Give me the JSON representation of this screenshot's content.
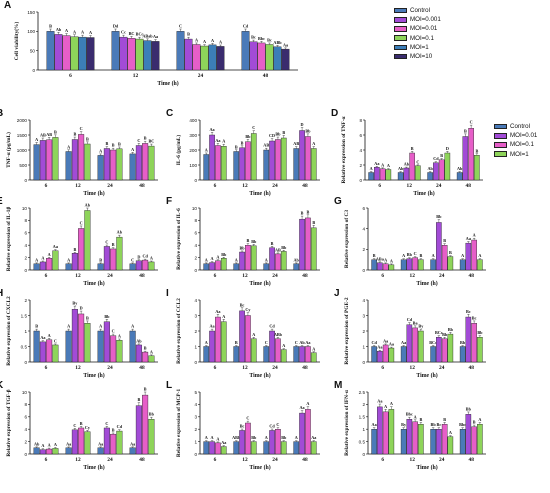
{
  "figure": {
    "legend_top": [
      {
        "name": "Control",
        "color": "#4a7ab8"
      },
      {
        "name": "MOI=0.001",
        "color": "#a24bd6"
      },
      {
        "name": "MOI=0.01",
        "color": "#e65ec8"
      },
      {
        "name": "MOI=0.1",
        "color": "#8ed45a"
      },
      {
        "name": "MOI=1",
        "color": "#3c7eb8"
      },
      {
        "name": "MOI=10",
        "color": "#3a2c6e"
      }
    ],
    "legend_mid": [
      {
        "name": "Control",
        "color": "#4a7ab8"
      },
      {
        "name": "MOI=0.01",
        "color": "#a24bd6"
      },
      {
        "name": "MOI=0.1",
        "color": "#e65ec8"
      },
      {
        "name": "MOI=1",
        "color": "#8ed45a"
      }
    ]
  },
  "chart_data": [
    {
      "panel": "A",
      "type": "bar",
      "ylabel": "Cell viability(%)",
      "xlabel": "Time (h)",
      "categories": [
        "6",
        "12",
        "24",
        "48"
      ],
      "ylim": [
        0,
        150
      ],
      "yticks": [
        0,
        50,
        100,
        150
      ],
      "colors": [
        "#4a7ab8",
        "#a24bd6",
        "#e65ec8",
        "#8ed45a",
        "#3c7eb8",
        "#3a2c6e"
      ],
      "series": [
        {
          "name": "Control",
          "values": [
            100,
            100,
            100,
            100
          ]
        },
        {
          "name": "MOI=0.001",
          "values": [
            92,
            85,
            80,
            73
          ]
        },
        {
          "name": "MOI=0.01",
          "values": [
            89,
            82,
            66,
            70
          ]
        },
        {
          "name": "MOI=0.1",
          "values": [
            86,
            80,
            62,
            66
          ]
        },
        {
          "name": "MOI=1",
          "values": [
            85,
            76,
            65,
            60
          ]
        },
        {
          "name": "MOI=10",
          "values": [
            84,
            74,
            61,
            54
          ]
        }
      ],
      "labels": [
        [
          "B",
          "Ab",
          "A",
          "A",
          "A",
          "A"
        ],
        [
          "Dd",
          "Cc",
          "BC",
          "BCc",
          "ABab",
          "Aa"
        ],
        [
          "C",
          "B",
          "A",
          "A",
          "A",
          "A"
        ],
        [
          "Cd",
          "Bc",
          "Bbc",
          "Bc",
          "ABb",
          "Aa"
        ]
      ]
    },
    {
      "panel": "B",
      "type": "bar",
      "ylabel": "TNF-α (pg/mL)",
      "xlabel": "Time (h)",
      "categories": [
        "6",
        "12",
        "24",
        "48"
      ],
      "ylim": [
        0,
        2000
      ],
      "yticks": [
        0,
        500,
        1000,
        1500,
        2000
      ],
      "colors": [
        "#4a7ab8",
        "#a24bd6",
        "#e65ec8",
        "#8ed45a"
      ],
      "series": [
        {
          "name": "Control",
          "values": [
            1180,
            950,
            820,
            870
          ]
        },
        {
          "name": "MOI=0.01",
          "values": [
            1320,
            1350,
            1050,
            1150
          ]
        },
        {
          "name": "MOI=0.1",
          "values": [
            1340,
            1520,
            1000,
            1220
          ]
        },
        {
          "name": "MOI=1",
          "values": [
            1420,
            1200,
            1040,
            1130
          ]
        }
      ],
      "labels": [
        [
          "A",
          "AB",
          "AB",
          "B"
        ],
        [
          "A",
          "B",
          "C",
          "B"
        ],
        [
          "A",
          "B",
          "B",
          "B"
        ],
        [
          "A",
          "C",
          "B",
          "BC"
        ]
      ]
    },
    {
      "panel": "C",
      "type": "bar",
      "ylabel": "IL-6 (pg/mL)",
      "xlabel": "Time (h)",
      "categories": [
        "6",
        "12",
        "24",
        "48"
      ],
      "ylim": [
        0,
        400
      ],
      "yticks": [
        0,
        100,
        200,
        300,
        400
      ],
      "colors": [
        "#4a7ab8",
        "#a24bd6",
        "#e65ec8",
        "#8ed45a"
      ],
      "series": [
        {
          "name": "Control",
          "values": [
            170,
            190,
            200,
            210
          ]
        },
        {
          "name": "MOI=0.01",
          "values": [
            300,
            215,
            260,
            330
          ]
        },
        {
          "name": "MOI=0.1",
          "values": [
            230,
            255,
            270,
            290
          ]
        },
        {
          "name": "MOI=1",
          "values": [
            225,
            310,
            280,
            210
          ]
        }
      ],
      "labels": [
        [
          "A",
          "Aa",
          "Aa",
          "A"
        ],
        [
          "B",
          "B",
          "Bb",
          "C"
        ],
        [
          "AB",
          "CD",
          "Bb",
          "B"
        ],
        [
          "AB",
          "D",
          "Bb",
          "A"
        ]
      ]
    },
    {
      "panel": "D",
      "type": "bar",
      "ylabel": "Relative expression of TNF-α",
      "xlabel": "Time (h)",
      "categories": [
        "6",
        "12",
        "24",
        "48"
      ],
      "ylim": [
        0,
        8
      ],
      "yticks": [
        0,
        2,
        4,
        6,
        8
      ],
      "colors": [
        "#4a7ab8",
        "#a24bd6",
        "#e65ec8",
        "#8ed45a"
      ],
      "series": [
        {
          "name": "Control",
          "values": [
            1,
            1,
            1,
            1
          ]
        },
        {
          "name": "MOI=0.01",
          "values": [
            1.7,
            1.6,
            2.3,
            5.8
          ]
        },
        {
          "name": "MOI=0.1",
          "values": [
            1.5,
            3.6,
            2.7,
            6.9
          ]
        },
        {
          "name": "MOI=1",
          "values": [
            1.4,
            1.9,
            3.6,
            3.3
          ]
        }
      ],
      "labels": [
        [
          "A",
          "Aa",
          "A",
          "A"
        ],
        [
          "Ab",
          "Ab",
          "B",
          "C"
        ],
        [
          "Ab",
          "Cd",
          "B",
          "D"
        ],
        [
          "Ab",
          "B",
          "C",
          "B"
        ]
      ]
    },
    {
      "panel": "E",
      "type": "bar",
      "ylabel": "Relative expression of IL-1β",
      "xlabel": "Time (h)",
      "categories": [
        "6",
        "12",
        "24",
        "48"
      ],
      "ylim": [
        0,
        10
      ],
      "yticks": [
        0,
        2,
        4,
        6,
        8,
        10
      ],
      "colors": [
        "#4a7ab8",
        "#a24bd6",
        "#e65ec8",
        "#8ed45a"
      ],
      "series": [
        {
          "name": "Control",
          "values": [
            1,
            1,
            1,
            1
          ]
        },
        {
          "name": "MOI=0.01",
          "values": [
            1.3,
            2.7,
            3.8,
            1.5
          ]
        },
        {
          "name": "MOI=0.1",
          "values": [
            1.9,
            6.7,
            3.4,
            1.6
          ]
        },
        {
          "name": "MOI=1",
          "values": [
            3.1,
            9.6,
            5.3,
            1.3
          ]
        }
      ],
      "labels": [
        [
          "A",
          "A",
          "A",
          "Aa"
        ],
        [
          "A",
          "B",
          "C",
          "Ab"
        ],
        [
          "B",
          "C",
          "B",
          "Ab"
        ],
        [
          "C",
          "D",
          "Cd",
          "A"
        ]
      ]
    },
    {
      "panel": "F",
      "type": "bar",
      "ylabel": "Relative expression of IL-6",
      "xlabel": "Time (h)",
      "categories": [
        "6",
        "12",
        "24",
        "48"
      ],
      "ylim": [
        0,
        10
      ],
      "yticks": [
        0,
        2,
        4,
        6,
        8,
        10
      ],
      "colors": [
        "#4a7ab8",
        "#a24bd6",
        "#e65ec8",
        "#8ed45a"
      ],
      "series": [
        {
          "name": "Control",
          "values": [
            1,
            1,
            1,
            1
          ]
        },
        {
          "name": "MOI=0.01",
          "values": [
            1.2,
            2.9,
            3.6,
            8.2
          ]
        },
        {
          "name": "MOI=0.1",
          "values": [
            1.5,
            4.0,
            2.6,
            8.4
          ]
        },
        {
          "name": "MOI=1",
          "values": [
            1.9,
            3.9,
            3.0,
            6.8
          ]
        }
      ],
      "labels": [
        [
          "A",
          "A",
          "A",
          "Bb"
        ],
        [
          "A",
          "Bb",
          "B",
          "Bb"
        ],
        [
          "A",
          "B",
          "AB",
          "Bb"
        ],
        [
          "Ab",
          "B",
          "B",
          "B"
        ]
      ]
    },
    {
      "panel": "G",
      "type": "bar",
      "ylabel": "Relative expression of C3",
      "xlabel": "Time (h)",
      "categories": [
        "6",
        "12",
        "24",
        "48"
      ],
      "ylim": [
        0,
        6
      ],
      "yticks": [
        0,
        2,
        4,
        6
      ],
      "colors": [
        "#4a7ab8",
        "#a24bd6",
        "#e65ec8",
        "#8ed45a"
      ],
      "series": [
        {
          "name": "Control",
          "values": [
            1,
            1,
            1,
            1
          ]
        },
        {
          "name": "MOI=0.01",
          "values": [
            0.7,
            1.1,
            4.6,
            2.6
          ]
        },
        {
          "name": "MOI=0.1",
          "values": [
            0.6,
            1.2,
            2.4,
            2.9
          ]
        },
        {
          "name": "MOI=1",
          "values": [
            0.5,
            1.0,
            1.3,
            1.0
          ]
        }
      ],
      "labels": [
        [
          "B",
          "ABa",
          "A",
          "A"
        ],
        [
          "A",
          "Bb",
          "C",
          "B"
        ],
        [
          "A",
          "Bb",
          "B",
          "B"
        ],
        [
          "A",
          "Aa",
          "A",
          "A"
        ]
      ]
    },
    {
      "panel": "H",
      "type": "bar",
      "ylabel": "Relative expression of CXCL2",
      "xlabel": "Time (h)",
      "categories": [
        "6",
        "12",
        "24",
        "48"
      ],
      "ylim": [
        0,
        2.0
      ],
      "yticks": [
        0,
        0.5,
        1.0,
        1.5,
        2.0
      ],
      "colors": [
        "#4a7ab8",
        "#a24bd6",
        "#e65ec8",
        "#8ed45a"
      ],
      "series": [
        {
          "name": "Control",
          "values": [
            1,
            1,
            1,
            1
          ]
        },
        {
          "name": "MOI=0.01",
          "values": [
            0.65,
            1.7,
            1.3,
            0.55
          ]
        },
        {
          "name": "MOI=0.1",
          "values": [
            0.72,
            1.55,
            0.85,
            0.32
          ]
        },
        {
          "name": "MOI=1",
          "values": [
            0.55,
            1.25,
            0.7,
            0.2
          ]
        }
      ],
      "labels": [
        [
          "B",
          "Aa",
          "A",
          "C"
        ],
        [
          "A",
          "By",
          "D",
          "B"
        ],
        [
          "A",
          "Bb",
          "C",
          "A"
        ],
        [
          "A",
          "Ab",
          "B",
          "A"
        ]
      ]
    },
    {
      "panel": "I",
      "type": "bar",
      "ylabel": "Relative expression of CCL2",
      "xlabel": "Time (h)",
      "categories": [
        "6",
        "12",
        "24",
        "48"
      ],
      "ylim": [
        0,
        4
      ],
      "yticks": [
        0,
        1,
        2,
        3,
        4
      ],
      "colors": [
        "#4a7ab8",
        "#a24bd6",
        "#e65ec8",
        "#8ed45a"
      ],
      "series": [
        {
          "name": "Control",
          "values": [
            1,
            1,
            1,
            1
          ]
        },
        {
          "name": "MOI=0.01",
          "values": [
            2.0,
            3.3,
            2.0,
            1.0
          ]
        },
        {
          "name": "MOI=0.1",
          "values": [
            2.9,
            3.0,
            1.5,
            1.0
          ]
        },
        {
          "name": "MOI=1",
          "values": [
            2.6,
            1.5,
            0.8,
            0.6
          ]
        }
      ],
      "labels": [
        [
          "A",
          "Aa",
          "Aa",
          "A"
        ],
        [
          "B",
          "Bc",
          "Cy",
          "A"
        ],
        [
          "C",
          "Cd",
          "ABb",
          "A"
        ],
        [
          "C",
          "Ab",
          "Aa",
          "A"
        ]
      ]
    },
    {
      "panel": "J",
      "type": "bar",
      "ylabel": "Relative expression of PGE-2",
      "xlabel": "Time (h)",
      "categories": [
        "6",
        "12",
        "24",
        "48"
      ],
      "ylim": [
        0,
        4
      ],
      "yticks": [
        0,
        1,
        2,
        3,
        4
      ],
      "colors": [
        "#4a7ab8",
        "#a24bd6",
        "#e65ec8",
        "#8ed45a"
      ],
      "series": [
        {
          "name": "Control",
          "values": [
            1,
            1,
            1,
            1
          ]
        },
        {
          "name": "MOI=0.01",
          "values": [
            0.7,
            2.4,
            1.6,
            2.9
          ]
        },
        {
          "name": "MOI=0.1",
          "values": [
            1.1,
            2.2,
            1.5,
            2.5
          ]
        },
        {
          "name": "MOI=1",
          "values": [
            0.9,
            2.0,
            1.8,
            1.6
          ]
        }
      ],
      "labels": [
        [
          "Cd",
          "Aa",
          "Aa",
          "Aa"
        ],
        [
          "Aa",
          "Cd",
          "Ba",
          "By"
        ],
        [
          "BCc",
          "BCc",
          "Bb",
          "Bb"
        ],
        [
          "Bb",
          "Bc",
          "Bc",
          "Bb"
        ]
      ]
    },
    {
      "panel": "K",
      "type": "bar",
      "ylabel": "Relative expression of TGF-β",
      "xlabel": "Time (h)",
      "categories": [
        "6",
        "12",
        "24",
        "48"
      ],
      "ylim": [
        0,
        10
      ],
      "yticks": [
        0,
        2,
        4,
        6,
        8,
        10
      ],
      "colors": [
        "#4a7ab8",
        "#a24bd6",
        "#e65ec8",
        "#8ed45a"
      ],
      "series": [
        {
          "name": "Control",
          "values": [
            1,
            1,
            1,
            1
          ]
        },
        {
          "name": "MOI=0.01",
          "values": [
            0.7,
            3.9,
            4.2,
            7.8
          ]
        },
        {
          "name": "MOI=0.1",
          "values": [
            0.8,
            4.2,
            3.2,
            9.5
          ]
        },
        {
          "name": "MOI=1",
          "values": [
            0.9,
            3.6,
            3.7,
            5.6
          ]
        }
      ],
      "labels": [
        [
          "Ab",
          "A",
          "A",
          "A"
        ],
        [
          "Aa",
          "C",
          "B",
          "Cy"
        ],
        [
          "Aa",
          "C",
          "B",
          "Cd"
        ],
        [
          "Aa",
          "B",
          "B",
          "Bb"
        ]
      ]
    },
    {
      "panel": "L",
      "type": "bar",
      "ylabel": "Relative expression of MCP-1",
      "xlabel": "Time (h)",
      "categories": [
        "6",
        "12",
        "24",
        "48"
      ],
      "ylim": [
        0,
        5
      ],
      "yticks": [
        0,
        1,
        2,
        3,
        4,
        5
      ],
      "colors": [
        "#4a7ab8",
        "#a24bd6",
        "#e65ec8",
        "#8ed45a"
      ],
      "series": [
        {
          "name": "Control",
          "values": [
            1,
            1,
            1,
            1
          ]
        },
        {
          "name": "MOI=0.01",
          "values": [
            1.0,
            1.9,
            1.9,
            3.3
          ]
        },
        {
          "name": "MOI=0.1",
          "values": [
            0.9,
            2.5,
            2.0,
            3.6
          ]
        },
        {
          "name": "MOI=1",
          "values": [
            0.6,
            1.0,
            1.0,
            1.0
          ]
        }
      ],
      "labels": [
        [
          "A",
          "A",
          "A",
          "Aa"
        ],
        [
          "ABb",
          "Bc",
          "C",
          "Bb"
        ],
        [
          "A",
          "Cd",
          "C",
          "Bb"
        ],
        [
          "A",
          "Aa",
          "A",
          "Aa"
        ]
      ]
    },
    {
      "panel": "M",
      "type": "bar",
      "ylabel": "Relative expression of IFN-α",
      "xlabel": "Time (h)",
      "categories": [
        "6",
        "12",
        "24",
        "48"
      ],
      "ylim": [
        0,
        2.5
      ],
      "yticks": [
        0,
        0.5,
        1.0,
        1.5,
        2.0,
        2.5
      ],
      "colors": [
        "#4a7ab8",
        "#a24bd6",
        "#e65ec8",
        "#8ed45a"
      ],
      "series": [
        {
          "name": "Control",
          "values": [
            1,
            1,
            1,
            1
          ]
        },
        {
          "name": "MOI=0.01",
          "values": [
            1.9,
            1.4,
            1.0,
            1.6
          ]
        },
        {
          "name": "MOI=0.1",
          "values": [
            1.7,
            1.3,
            1.2,
            1.1
          ]
        },
        {
          "name": "MOI=1",
          "values": [
            1.8,
            1.2,
            0.7,
            1.2
          ]
        }
      ],
      "labels": [
        [
          "Aa",
          "Aa",
          "A",
          "A"
        ],
        [
          "By",
          "Bbc",
          "A",
          "B"
        ],
        [
          "Bb",
          "Bc",
          "B",
          "A"
        ],
        [
          "Bbc",
          "Bb",
          "B",
          "A"
        ]
      ]
    }
  ]
}
